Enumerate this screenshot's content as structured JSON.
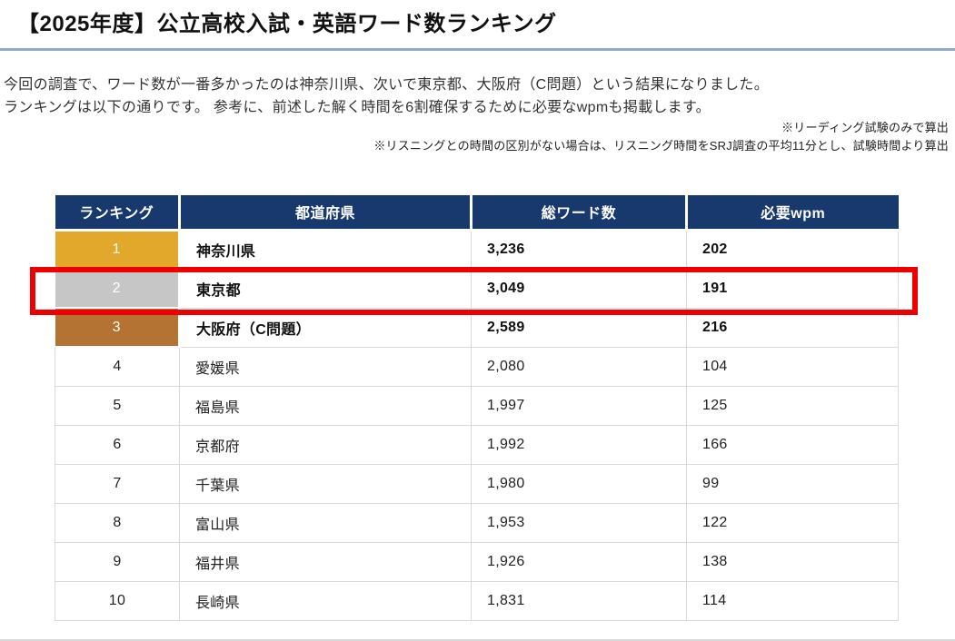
{
  "page": {
    "title": "【2025年度】公立高校入試・英語ワード数ランキング",
    "intro_line1": "今回の調査で、ワード数が一番多かったのは神奈川県、次いで東京都、大阪府（C問題）という結果になりました。",
    "intro_line2": "ランキングは以下の通りです。 参考に、前述した解く時間を6割確保するために必要なwpmも掲載します。",
    "note1": "※リーディング試験のみで算出",
    "note2": "※リスニングとの時間の区別がない場合は、リスニング時間をSRJ調査の平均11分とし、試験時間より算出"
  },
  "table": {
    "headers": [
      "ランキング",
      "都道府県",
      "総ワード数",
      "必要wpm"
    ],
    "rows": [
      {
        "rank": "1",
        "prefecture": "神奈川県",
        "words": "3,236",
        "wpm": "202",
        "medal": "gold",
        "bold": true,
        "highlighted": false
      },
      {
        "rank": "2",
        "prefecture": "東京都",
        "words": "3,049",
        "wpm": "191",
        "medal": "silver",
        "bold": true,
        "highlighted": true
      },
      {
        "rank": "3",
        "prefecture": "大阪府（C問題）",
        "words": "2,589",
        "wpm": "216",
        "medal": "bronze",
        "bold": true,
        "highlighted": false
      },
      {
        "rank": "4",
        "prefecture": "愛媛県",
        "words": "2,080",
        "wpm": "104",
        "medal": null,
        "bold": false,
        "highlighted": false
      },
      {
        "rank": "5",
        "prefecture": "福島県",
        "words": "1,997",
        "wpm": "125",
        "medal": null,
        "bold": false,
        "highlighted": false
      },
      {
        "rank": "6",
        "prefecture": "京都府",
        "words": "1,992",
        "wpm": "166",
        "medal": null,
        "bold": false,
        "highlighted": false
      },
      {
        "rank": "7",
        "prefecture": "千葉県",
        "words": "1,980",
        "wpm": "99",
        "medal": null,
        "bold": false,
        "highlighted": false
      },
      {
        "rank": "8",
        "prefecture": "富山県",
        "words": "1,953",
        "wpm": "122",
        "medal": null,
        "bold": false,
        "highlighted": false
      },
      {
        "rank": "9",
        "prefecture": "福井県",
        "words": "1,926",
        "wpm": "138",
        "medal": null,
        "bold": false,
        "highlighted": false
      },
      {
        "rank": "10",
        "prefecture": "長崎県",
        "words": "1,831",
        "wpm": "114",
        "medal": null,
        "bold": false,
        "highlighted": false
      }
    ]
  },
  "colors": {
    "header_bg": "#17396d",
    "gold": "#e2a82b",
    "silver": "#c6c6c6",
    "bronze": "#b57333",
    "highlight_red": "#ee0000",
    "title_rule": "#92a9c7"
  }
}
